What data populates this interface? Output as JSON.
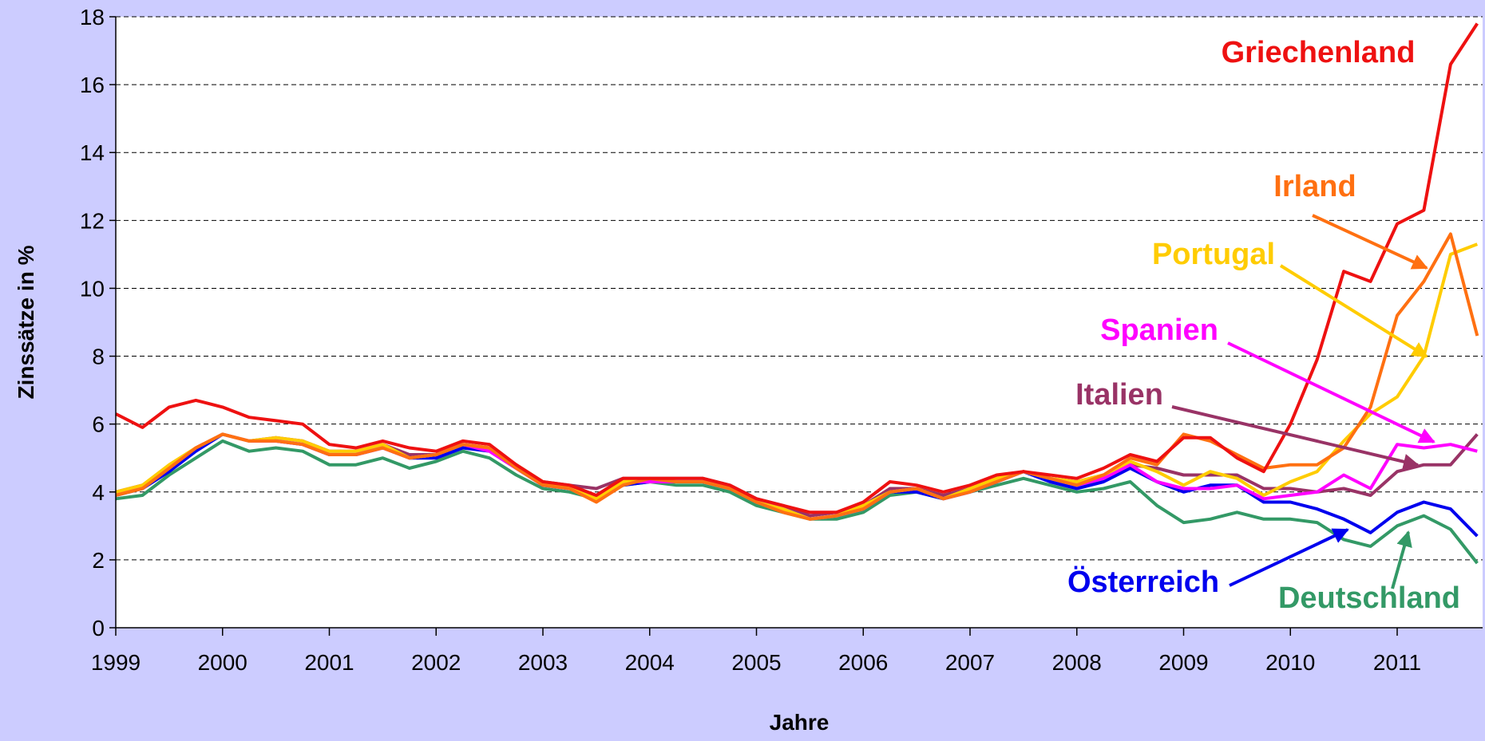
{
  "chart_data": {
    "type": "line",
    "x_label": "Jahre",
    "y_label": "Zinssätze in %",
    "xlim": [
      1999,
      2011.8
    ],
    "ylim": [
      0,
      18
    ],
    "xticks": [
      1999,
      2000,
      2001,
      2002,
      2003,
      2004,
      2005,
      2006,
      2007,
      2008,
      2009,
      2010,
      2011
    ],
    "yticks": [
      0,
      2,
      4,
      6,
      8,
      10,
      12,
      14,
      16,
      18
    ],
    "grid": true,
    "x": [
      1999,
      1999.25,
      1999.5,
      1999.75,
      2000,
      2000.25,
      2000.5,
      2000.75,
      2001,
      2001.25,
      2001.5,
      2001.75,
      2002,
      2002.25,
      2002.5,
      2002.75,
      2003,
      2003.25,
      2003.5,
      2003.75,
      2004,
      2004.25,
      2004.5,
      2004.75,
      2005,
      2005.25,
      2005.5,
      2005.75,
      2006,
      2006.25,
      2006.5,
      2006.75,
      2007,
      2007.25,
      2007.5,
      2007.75,
      2008,
      2008.25,
      2008.5,
      2008.75,
      2009,
      2009.25,
      2009.5,
      2009.75,
      2010,
      2010.25,
      2010.5,
      2010.75,
      2011,
      2011.25,
      2011.5,
      2011.75
    ],
    "series": [
      {
        "name": "Deutschland",
        "color": "#339966",
        "values": [
          3.8,
          3.9,
          4.5,
          5.0,
          5.5,
          5.2,
          5.3,
          5.2,
          4.8,
          4.8,
          5.0,
          4.7,
          4.9,
          5.2,
          5.0,
          4.5,
          4.1,
          4.0,
          3.8,
          4.2,
          4.3,
          4.2,
          4.2,
          4.0,
          3.6,
          3.4,
          3.2,
          3.2,
          3.4,
          3.9,
          4.0,
          3.8,
          4.0,
          4.2,
          4.4,
          4.2,
          4.0,
          4.1,
          4.3,
          3.6,
          3.1,
          3.2,
          3.4,
          3.2,
          3.2,
          3.1,
          2.6,
          2.4,
          3.0,
          3.3,
          2.9,
          1.9
        ]
      },
      {
        "name": "Österreich",
        "color": "#0000ee",
        "values": [
          3.9,
          4.1,
          4.6,
          5.2,
          5.7,
          5.5,
          5.5,
          5.4,
          5.1,
          5.1,
          5.3,
          5.0,
          5.0,
          5.3,
          5.2,
          4.7,
          4.2,
          4.1,
          3.8,
          4.2,
          4.3,
          4.3,
          4.3,
          4.1,
          3.7,
          3.5,
          3.2,
          3.3,
          3.5,
          4.0,
          4.0,
          3.8,
          4.0,
          4.3,
          4.6,
          4.3,
          4.1,
          4.3,
          4.7,
          4.3,
          4.0,
          4.2,
          4.2,
          3.7,
          3.7,
          3.5,
          3.2,
          2.8,
          3.4,
          3.7,
          3.5,
          2.7
        ]
      },
      {
        "name": "Italien",
        "color": "#993366",
        "values": [
          4.0,
          4.2,
          4.7,
          5.3,
          5.7,
          5.5,
          5.6,
          5.5,
          5.2,
          5.2,
          5.4,
          5.1,
          5.1,
          5.4,
          5.3,
          4.8,
          4.3,
          4.2,
          4.1,
          4.4,
          4.4,
          4.4,
          4.4,
          4.2,
          3.8,
          3.6,
          3.3,
          3.4,
          3.6,
          4.1,
          4.1,
          3.9,
          4.1,
          4.4,
          4.6,
          4.4,
          4.3,
          4.5,
          4.8,
          4.7,
          4.5,
          4.5,
          4.5,
          4.1,
          4.1,
          4.0,
          4.1,
          3.9,
          4.6,
          4.8,
          4.8,
          5.7
        ]
      },
      {
        "name": "Spanien",
        "color": "#ff00ff",
        "values": [
          4.0,
          4.1,
          4.7,
          5.3,
          5.7,
          5.5,
          5.5,
          5.4,
          5.1,
          5.1,
          5.3,
          5.0,
          5.1,
          5.4,
          5.2,
          4.7,
          4.2,
          4.1,
          3.8,
          4.3,
          4.3,
          4.3,
          4.3,
          4.1,
          3.7,
          3.5,
          3.2,
          3.3,
          3.5,
          4.0,
          4.1,
          3.8,
          4.0,
          4.3,
          4.6,
          4.4,
          4.2,
          4.4,
          4.8,
          4.3,
          4.1,
          4.1,
          4.2,
          3.8,
          3.9,
          4.0,
          4.5,
          4.1,
          5.4,
          5.3,
          5.4,
          5.2
        ]
      },
      {
        "name": "Portugal",
        "color": "#ffcc00",
        "values": [
          4.0,
          4.2,
          4.8,
          5.3,
          5.7,
          5.5,
          5.6,
          5.5,
          5.2,
          5.2,
          5.4,
          5.0,
          5.1,
          5.4,
          5.3,
          4.8,
          4.3,
          4.1,
          3.8,
          4.3,
          4.4,
          4.3,
          4.3,
          4.1,
          3.7,
          3.5,
          3.2,
          3.3,
          3.6,
          4.0,
          4.1,
          3.8,
          4.1,
          4.4,
          4.6,
          4.4,
          4.3,
          4.5,
          4.9,
          4.6,
          4.2,
          4.6,
          4.4,
          3.9,
          4.3,
          4.6,
          5.5,
          6.3,
          6.8,
          8.0,
          11.0,
          11.3
        ]
      },
      {
        "name": "Irland",
        "color": "#ff7011",
        "values": [
          3.9,
          4.1,
          4.7,
          5.3,
          5.7,
          5.5,
          5.5,
          5.4,
          5.1,
          5.1,
          5.3,
          5.0,
          5.1,
          5.4,
          5.3,
          4.7,
          4.2,
          4.1,
          3.7,
          4.2,
          4.4,
          4.3,
          4.3,
          4.1,
          3.7,
          3.4,
          3.2,
          3.3,
          3.5,
          4.0,
          4.1,
          3.8,
          4.0,
          4.3,
          4.6,
          4.4,
          4.2,
          4.5,
          5.0,
          4.8,
          5.7,
          5.5,
          5.1,
          4.7,
          4.8,
          4.8,
          5.3,
          6.5,
          9.2,
          10.2,
          11.6,
          8.6
        ]
      },
      {
        "name": "Griechenland",
        "color": "#ee1111",
        "values": [
          6.3,
          5.9,
          6.5,
          6.7,
          6.5,
          6.2,
          6.1,
          6.0,
          5.4,
          5.3,
          5.5,
          5.3,
          5.2,
          5.5,
          5.4,
          4.8,
          4.3,
          4.2,
          3.9,
          4.4,
          4.4,
          4.4,
          4.4,
          4.2,
          3.8,
          3.6,
          3.4,
          3.4,
          3.7,
          4.3,
          4.2,
          4.0,
          4.2,
          4.5,
          4.6,
          4.5,
          4.4,
          4.7,
          5.1,
          4.9,
          5.6,
          5.6,
          5.0,
          4.6,
          6.0,
          7.9,
          10.5,
          10.2,
          11.9,
          12.3,
          16.6,
          17.8
        ]
      }
    ]
  }
}
